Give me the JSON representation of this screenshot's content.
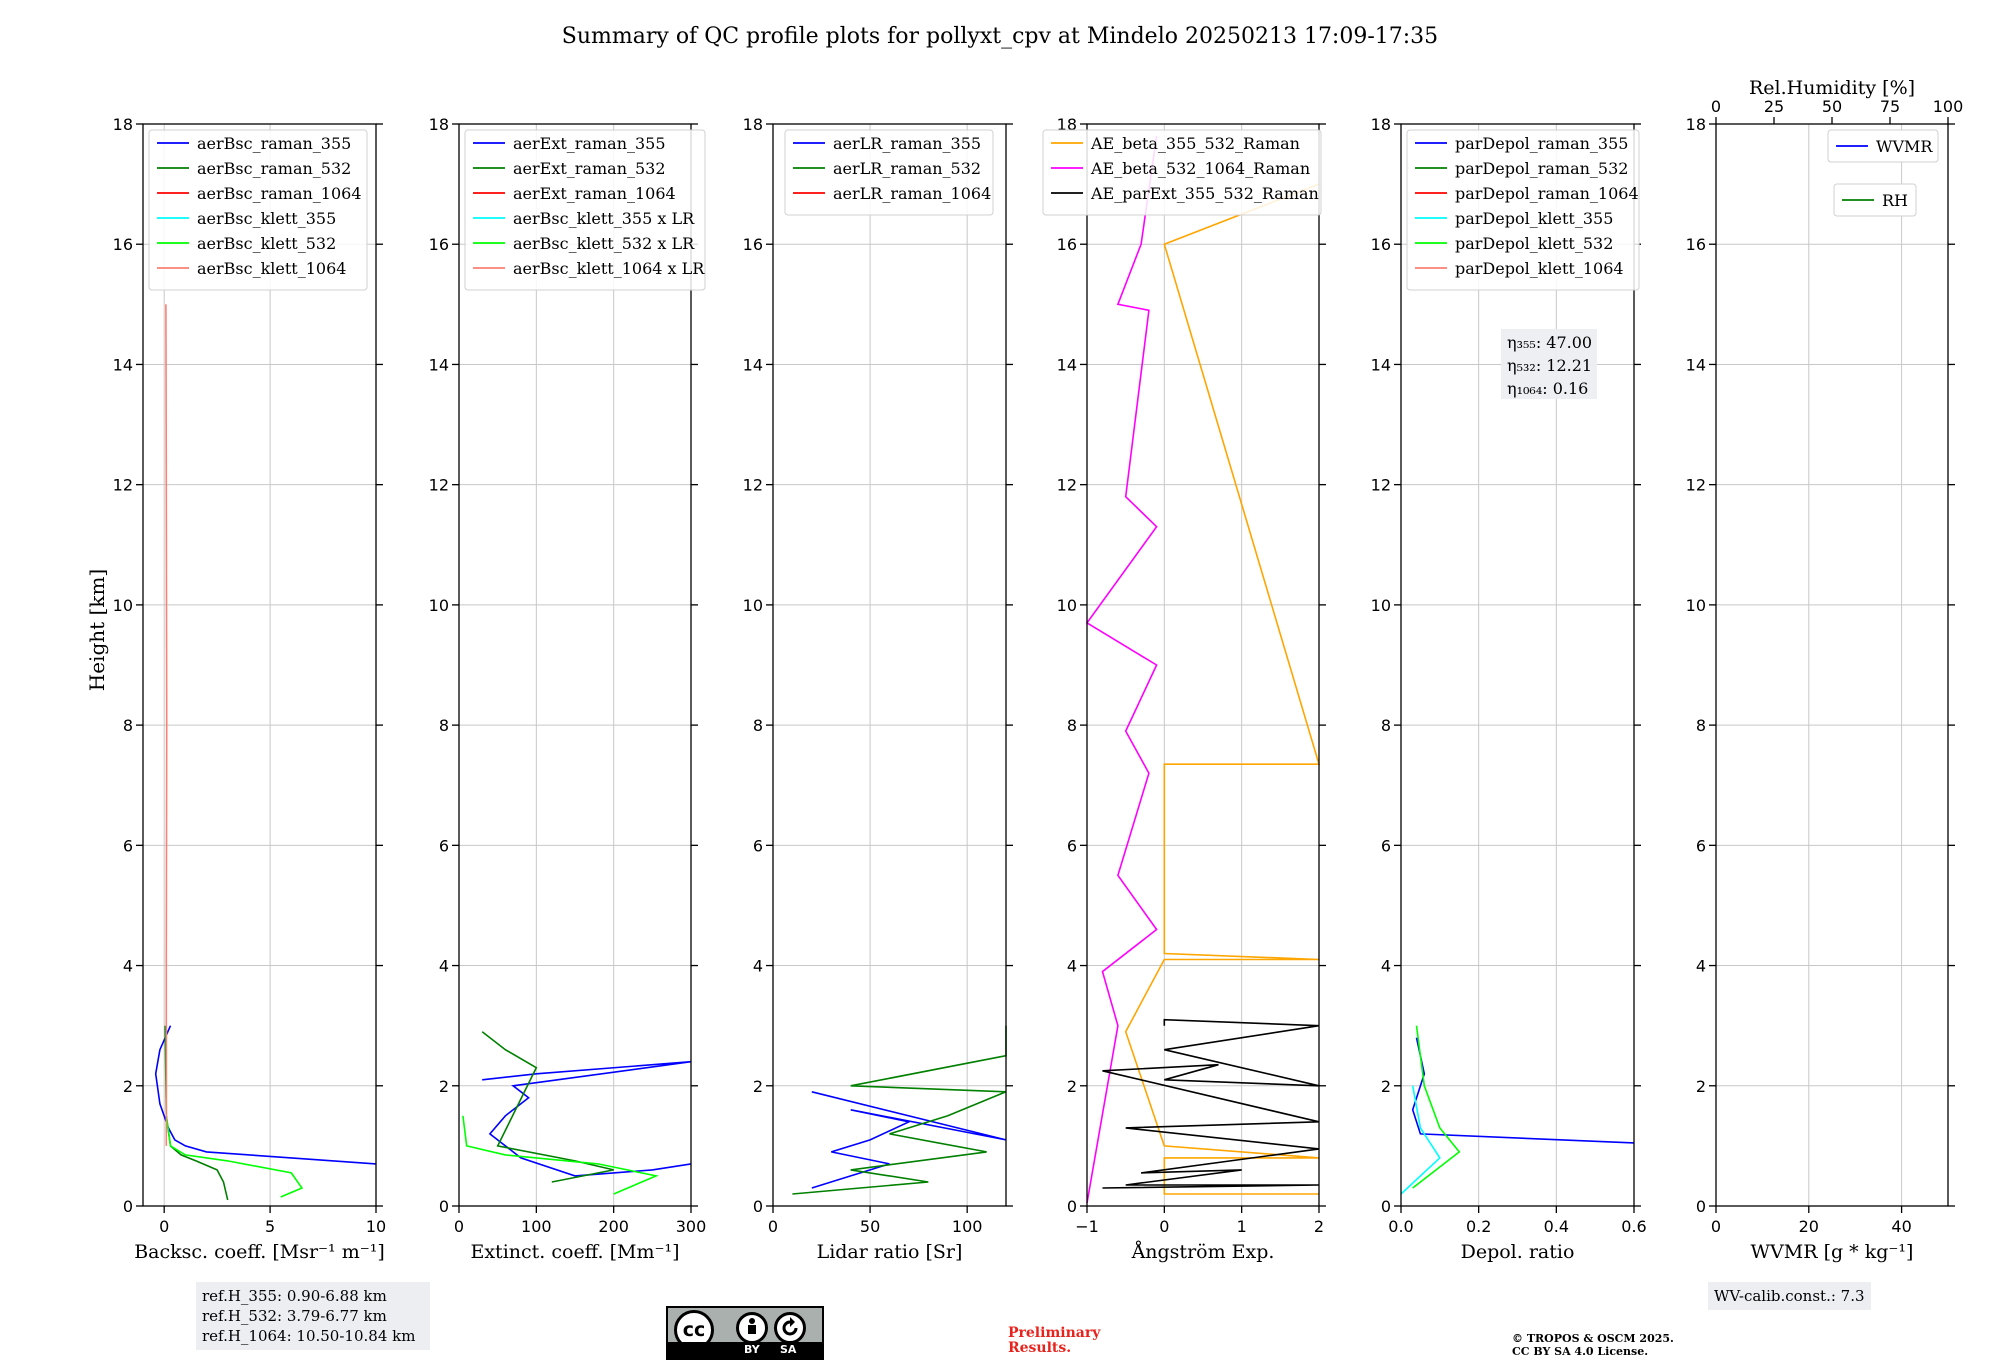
{
  "figure": {
    "title": "Summary of QC profile plots for pollyxt_cpv at Mindelo 20250213 17:09-17:35",
    "ylabel": "Height [km]"
  },
  "chart_data": [
    {
      "id": "bsc",
      "type": "line",
      "xlabel": "Backsc. coeff. [Msr⁻¹ m⁻¹]",
      "xlim": [
        -1,
        10
      ],
      "xticks": [
        0,
        5,
        10
      ],
      "ylim": [
        0,
        18
      ],
      "yticks": [
        0,
        2,
        4,
        6,
        8,
        10,
        12,
        14,
        16,
        18
      ],
      "grid": true,
      "legend": [
        {
          "name": "aerBsc_raman_355",
          "color": "#0000ff"
        },
        {
          "name": "aerBsc_raman_532",
          "color": "#008000"
        },
        {
          "name": "aerBsc_raman_1064",
          "color": "#ff0000"
        },
        {
          "name": "aerBsc_klett_355",
          "color": "#00ffff"
        },
        {
          "name": "aerBsc_klett_532",
          "color": "#00ff00"
        },
        {
          "name": "aerBsc_klett_1064",
          "color": "#fa8072"
        }
      ],
      "series": [
        {
          "name": "aerBsc_raman_355",
          "color": "#0000ff",
          "x": [
            10,
            6,
            2,
            1,
            0.5,
            0.2,
            -0.2,
            -0.4,
            -0.2,
            0.3
          ],
          "y": [
            0.7,
            0.8,
            0.9,
            1.0,
            1.1,
            1.3,
            1.7,
            2.2,
            2.6,
            3.0
          ]
        },
        {
          "name": "aerBsc_raman_532",
          "color": "#008000",
          "x": [
            3,
            2.8,
            2.5,
            1.5,
            0.8,
            0.3,
            0.1,
            0.05
          ],
          "y": [
            0.1,
            0.4,
            0.6,
            0.75,
            0.85,
            1.0,
            1.5,
            3.0
          ]
        },
        {
          "name": "aerBsc_klett_532",
          "color": "#00ff00",
          "x": [
            5.5,
            6.5,
            6,
            3,
            1,
            0.3,
            0.1,
            0.1
          ],
          "y": [
            0.15,
            0.3,
            0.55,
            0.75,
            0.85,
            1.0,
            1.5,
            3.0
          ]
        },
        {
          "name": "aerBsc_klett_1064",
          "color": "#fa8072",
          "x": [
            0.1,
            0.1,
            0.12,
            0.1,
            0.08
          ],
          "y": [
            1.0,
            4.0,
            8.0,
            12.0,
            15.0
          ]
        }
      ]
    },
    {
      "id": "ext",
      "type": "line",
      "xlabel": "Extinct. coeff. [Mm⁻¹]",
      "xlim": [
        0,
        300
      ],
      "xticks": [
        0,
        100,
        200,
        300
      ],
      "ylim": [
        0,
        18
      ],
      "yticks": [
        0,
        2,
        4,
        6,
        8,
        10,
        12,
        14,
        16,
        18
      ],
      "grid": true,
      "legend": [
        {
          "name": "aerExt_raman_355",
          "color": "#0000ff"
        },
        {
          "name": "aerExt_raman_532",
          "color": "#008000"
        },
        {
          "name": "aerExt_raman_1064",
          "color": "#ff0000"
        },
        {
          "name": "aerBsc_klett_355 x LR",
          "color": "#00ffff"
        },
        {
          "name": "aerBsc_klett_532 x LR",
          "color": "#00ff00"
        },
        {
          "name": "aerBsc_klett_1064 x LR",
          "color": "#fa8072"
        }
      ],
      "series": [
        {
          "name": "aerExt_raman_355",
          "color": "#0000ff",
          "x": [
            300,
            250,
            150,
            80,
            40,
            60,
            90,
            70,
            300,
            100,
            30
          ],
          "y": [
            0.7,
            0.6,
            0.5,
            0.8,
            1.2,
            1.5,
            1.8,
            2.0,
            2.4,
            2.2,
            2.1
          ]
        },
        {
          "name": "aerExt_raman_532",
          "color": "#008000",
          "x": [
            120,
            200,
            150,
            50,
            100,
            60,
            30
          ],
          "y": [
            0.4,
            0.6,
            0.75,
            1.0,
            2.3,
            2.6,
            2.9
          ]
        },
        {
          "name": "aerBsc_klett_532 x LR",
          "color": "#00ff00",
          "x": [
            200,
            255,
            180,
            60,
            10,
            5
          ],
          "y": [
            0.2,
            0.5,
            0.7,
            0.85,
            1.0,
            1.5
          ]
        }
      ]
    },
    {
      "id": "lr",
      "type": "line",
      "xlabel": "Lidar ratio [Sr]",
      "xlim": [
        0,
        120
      ],
      "xticks": [
        0,
        50,
        100
      ],
      "ylim": [
        0,
        18
      ],
      "yticks": [
        0,
        2,
        4,
        6,
        8,
        10,
        12,
        14,
        16,
        18
      ],
      "grid": true,
      "legend": [
        {
          "name": "aerLR_raman_355",
          "color": "#0000ff"
        },
        {
          "name": "aerLR_raman_532",
          "color": "#008000"
        },
        {
          "name": "aerLR_raman_1064",
          "color": "#ff0000"
        }
      ],
      "series": [
        {
          "name": "aerLR_raman_355",
          "color": "#0000ff",
          "x": [
            20,
            40,
            60,
            30,
            50,
            70,
            40,
            120,
            20
          ],
          "y": [
            0.3,
            0.5,
            0.7,
            0.9,
            1.1,
            1.4,
            1.6,
            1.1,
            1.9
          ]
        },
        {
          "name": "aerLR_raman_532",
          "color": "#008000",
          "x": [
            10,
            80,
            40,
            110,
            60,
            90,
            120,
            40,
            120,
            120,
            120
          ],
          "y": [
            0.2,
            0.4,
            0.6,
            0.9,
            1.2,
            1.5,
            1.9,
            2.0,
            2.5,
            2.8,
            3.0
          ]
        }
      ]
    },
    {
      "id": "ae",
      "type": "line",
      "xlabel": "Ångström Exp.",
      "xlim": [
        -1,
        2
      ],
      "xticks": [
        -1,
        0,
        1,
        2
      ],
      "ylim": [
        0,
        18
      ],
      "yticks": [
        0,
        2,
        4,
        6,
        8,
        10,
        12,
        14,
        16,
        18
      ],
      "grid": true,
      "legend": [
        {
          "name": "AE_beta_355_532_Raman",
          "color": "#ffa500"
        },
        {
          "name": "AE_beta_532_1064_Raman",
          "color": "#ff00ff"
        },
        {
          "name": "AE_parExt_355_532_Raman",
          "color": "#000000"
        }
      ],
      "series": [
        {
          "name": "AE_beta_355_532_Raman",
          "color": "#ffa500",
          "x": [
            2,
            0,
            0,
            2,
            0,
            -0.5,
            0,
            2,
            0,
            0,
            2,
            0,
            2
          ],
          "y": [
            0.2,
            0.2,
            0.8,
            0.8,
            1.0,
            2.9,
            4.1,
            4.1,
            4.2,
            7.35,
            7.35,
            16.0,
            17.0
          ]
        },
        {
          "name": "AE_beta_532_1064_Raman",
          "color": "#ff00ff",
          "x": [
            -1,
            -0.6,
            -0.8,
            -0.1,
            -0.6,
            -0.2,
            -0.5,
            -0.1,
            -1,
            -0.1,
            -0.5,
            -0.2,
            -0.6,
            -0.3,
            -0.1
          ],
          "y": [
            0.05,
            3.0,
            3.9,
            4.6,
            5.5,
            7.2,
            7.9,
            9.0,
            9.7,
            11.3,
            11.8,
            14.9,
            15.0,
            16.0,
            17.8
          ]
        },
        {
          "name": "AE_parExt_355_532_Raman",
          "color": "#000000",
          "x": [
            0,
            0,
            2,
            0,
            2,
            0,
            0.7,
            -0.8,
            2,
            -0.5,
            2,
            -0.3,
            1,
            -0.5,
            2,
            -0.8
          ],
          "y": [
            3.0,
            3.1,
            3.0,
            2.6,
            2.0,
            2.1,
            2.35,
            2.25,
            1.4,
            1.3,
            0.95,
            0.55,
            0.6,
            0.35,
            0.35,
            0.3
          ]
        }
      ]
    },
    {
      "id": "depol",
      "type": "line",
      "xlabel": "Depol. ratio",
      "xlim": [
        0,
        0.6
      ],
      "xticks": [
        0.0,
        0.2,
        0.4,
        0.6
      ],
      "ylim": [
        0,
        18
      ],
      "yticks": [
        0,
        2,
        4,
        6,
        8,
        10,
        12,
        14,
        16,
        18
      ],
      "grid": true,
      "legend": [
        {
          "name": "parDepol_raman_355",
          "color": "#0000ff"
        },
        {
          "name": "parDepol_raman_532",
          "color": "#008000"
        },
        {
          "name": "parDepol_raman_1064",
          "color": "#ff0000"
        },
        {
          "name": "parDepol_klett_355",
          "color": "#00ffff"
        },
        {
          "name": "parDepol_klett_532",
          "color": "#00ff00"
        },
        {
          "name": "parDepol_klett_1064",
          "color": "#fa8072"
        }
      ],
      "annotations": [
        "η₃₅₅: 47.00",
        "η₅₃₂: 12.21",
        "η₁₀₆₄: 0.16"
      ],
      "series": [
        {
          "name": "parDepol_raman_355",
          "color": "#0000ff",
          "x": [
            0.6,
            0.05,
            0.03,
            0.06,
            0.04
          ],
          "y": [
            1.05,
            1.2,
            1.6,
            2.2,
            2.8
          ]
        },
        {
          "name": "parDepol_klett_532",
          "color": "#00ff00",
          "x": [
            0.03,
            0.15,
            0.1,
            0.06,
            0.04
          ],
          "y": [
            0.3,
            0.9,
            1.3,
            2.0,
            3.0
          ]
        },
        {
          "name": "parDepol_klett_355",
          "color": "#00ffff",
          "x": [
            0.0,
            0.1,
            0.05,
            0.03
          ],
          "y": [
            0.2,
            0.8,
            1.3,
            2.0
          ]
        }
      ]
    },
    {
      "id": "wv",
      "type": "line",
      "xlabel": "WVMR [g * kg⁻¹]",
      "xlim": [
        0,
        50
      ],
      "xticks": [
        0,
        20,
        40
      ],
      "top_xlabel": "Rel.Humidity [%]",
      "top_xlim": [
        0,
        100
      ],
      "top_xticks": [
        0,
        25,
        50,
        75,
        100
      ],
      "ylim": [
        0,
        18
      ],
      "yticks": [
        0,
        2,
        4,
        6,
        8,
        10,
        12,
        14,
        16,
        18
      ],
      "grid": true,
      "legend": [
        {
          "name": "WVMR",
          "color": "#0000ff"
        },
        {
          "name": "RH",
          "color": "#008000"
        }
      ],
      "series": []
    }
  ],
  "footer": {
    "ref_heights": [
      "ref.H_355: 0.90-6.88 km",
      "ref.H_532: 3.79-6.77 km",
      "ref.H_1064: 10.50-10.84 km"
    ],
    "license_badge": {
      "cc": "cc",
      "by": "BY",
      "sa": "SA"
    },
    "preliminary": [
      "Preliminary",
      "Results."
    ],
    "copyright": [
      "© TROPOS & OSCM 2025.",
      "CC BY SA 4.0 License."
    ],
    "wv_calib": "WV-calib.const.: 7.3"
  }
}
